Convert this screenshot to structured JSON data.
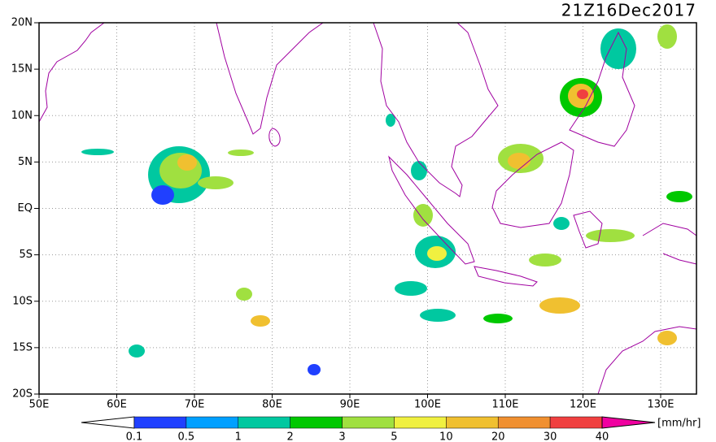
{
  "map": {
    "title": "21Z16Dec2017",
    "lat_labels": [
      "20N",
      "15N",
      "10N",
      "5N",
      "EQ",
      "5S",
      "10S",
      "15S",
      "20S"
    ],
    "lon_labels": [
      "50E",
      "60E",
      "70E",
      "80E",
      "90E",
      "100E",
      "110E",
      "120E",
      "130E"
    ],
    "colorbar": {
      "labels": [
        "0.1",
        "0.5",
        "1",
        "2",
        "3",
        "5",
        "10",
        "20",
        "30",
        "40"
      ],
      "colors": [
        "#2040ff",
        "#00a0ff",
        "#00c8a0",
        "#00c800",
        "#a0e040",
        "#f0f040",
        "#f0c030",
        "#f09030",
        "#f04040"
      ],
      "under_color": "#ffffff",
      "over_color": "#f000a0",
      "unit": "[mm/hr]"
    }
  }
}
